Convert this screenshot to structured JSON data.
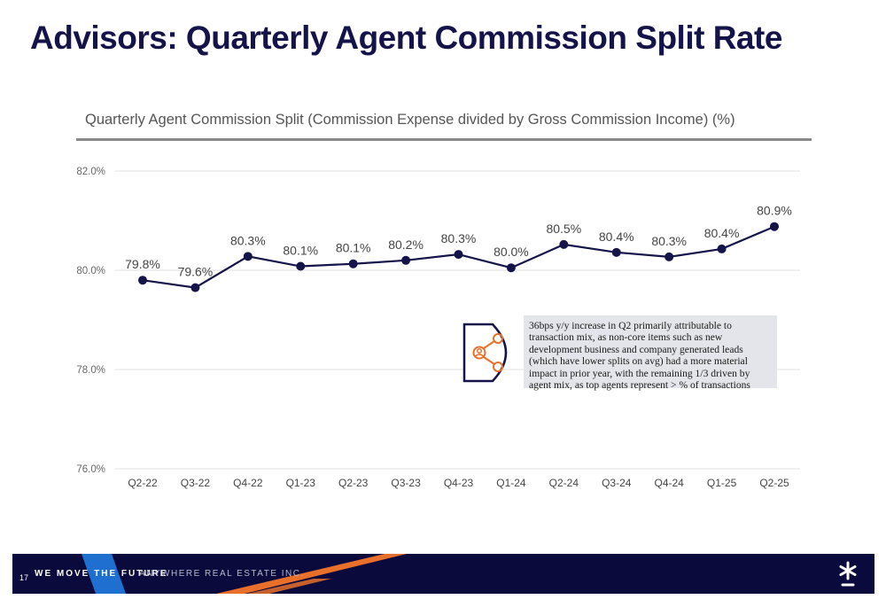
{
  "header": {
    "title": "Advisors:  Quarterly Agent Commission Split Rate"
  },
  "chart_data": {
    "type": "line",
    "title": "Quarterly Agent Commission Split (Commission Expense divided by Gross Commission Income) (%)",
    "xlabel": "",
    "ylabel": "",
    "categories": [
      "Q2-22",
      "Q3-22",
      "Q4-22",
      "Q1-23",
      "Q2-23",
      "Q3-23",
      "Q4-23",
      "Q1-24",
      "Q2-24",
      "Q3-24",
      "Q4-24",
      "Q1-25",
      "Q2-25"
    ],
    "values": [
      79.8,
      79.65,
      80.28,
      80.08,
      80.13,
      80.2,
      80.32,
      80.05,
      80.52,
      80.36,
      80.27,
      80.43,
      80.88
    ],
    "data_labels": [
      "79.8%",
      "79.6%",
      "80.3%",
      "80.1%",
      "80.1%",
      "80.2%",
      "80.3%",
      "80.0%",
      "80.5%",
      "80.4%",
      "80.3%",
      "80.4%",
      "80.9%"
    ],
    "ylim": [
      76,
      82
    ],
    "yticks": [
      76,
      78,
      80,
      82
    ],
    "ytick_labels": [
      "76.0%",
      "78.0%",
      "80.0%",
      "82.0%"
    ],
    "grid": true,
    "legend": "none",
    "line_color": "#14134a",
    "annotation": "36bps y/y increase in Q2 primarily attributable to transaction mix, as non-core items such as new development business and company generated leads (which have lower splits on avg) had a more material impact in prior year, with the remaining 1/3 driven by agent mix, as top agents represent > % of transactions"
  },
  "callout": {
    "icon": "people-network-icon",
    "icon_color": "#e8702a"
  },
  "footer": {
    "page_number": "17",
    "tagline": "WE MOVE THE FUTURE",
    "company": "ANYWHERE REAL ESTATE INC.",
    "logo": "asterisk-logo-icon"
  },
  "colors": {
    "navy": "#14134a",
    "orange": "#e8702a",
    "blue": "#1f6fd0"
  }
}
